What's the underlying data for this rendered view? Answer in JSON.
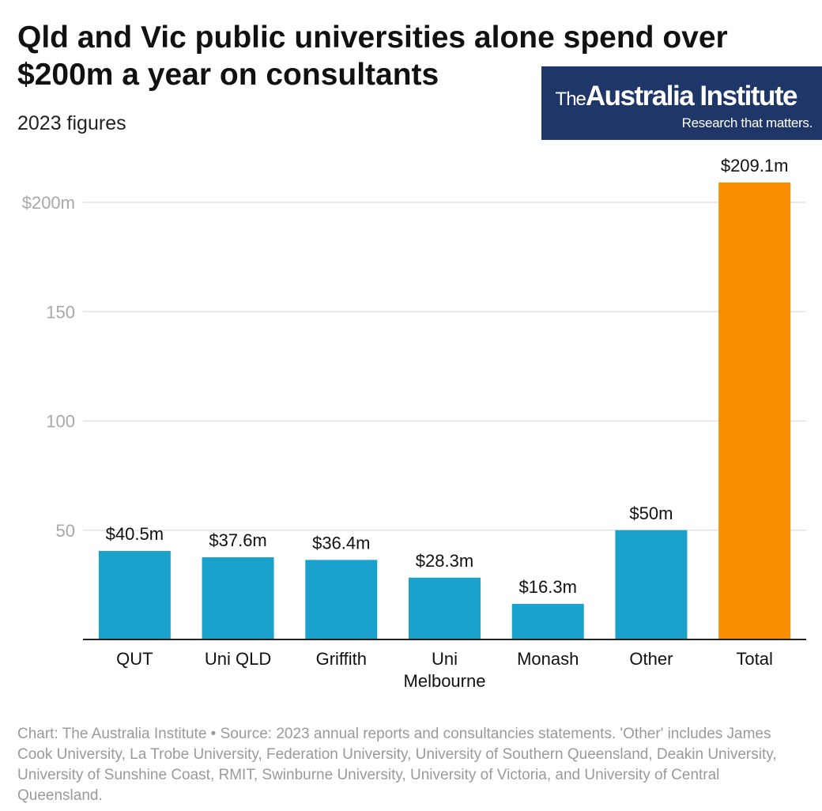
{
  "chart_data": {
    "type": "bar",
    "title": "Qld and Vic public universities alone spend over $200m a year on consultants",
    "subtitle": "2023 figures",
    "categories": [
      "QUT",
      "Uni QLD",
      "Griffith",
      "Uni Melbourne",
      "Monash",
      "Other",
      "Total"
    ],
    "values": [
      40.5,
      37.6,
      36.4,
      28.3,
      16.3,
      50,
      209.1
    ],
    "data_labels": [
      "$40.5m",
      "$37.6m",
      "$36.4m",
      "$28.3m",
      "$16.3m",
      "$50m",
      "$209.1m"
    ],
    "y_ticks": [
      50,
      100,
      150,
      200
    ],
    "y_tick_labels": [
      "50",
      "100",
      "150",
      "$200m"
    ],
    "ylim": [
      0,
      200
    ],
    "grid": true,
    "colors": {
      "bar": "#1aa1cc",
      "highlight_bar": "#f88e00",
      "grid": "#e3e3e3",
      "axis": "#222222",
      "tick_label": "#a8a8a8"
    },
    "highlight_category": "Total"
  },
  "logo": {
    "the": "The",
    "name": "Australia Institute",
    "tagline": "Research that matters.",
    "background": "#1f3668"
  },
  "footer": {
    "text": "Chart: The Australia Institute  • Source: 2023 annual reports and consultancies statements. 'Other' includes James Cook University, La Trobe University, Federation University, University of Southern Queensland, Deakin University, University of Sunshine Coast, RMIT, Swinburne University, University of Victoria, and University of Central Queensland."
  }
}
